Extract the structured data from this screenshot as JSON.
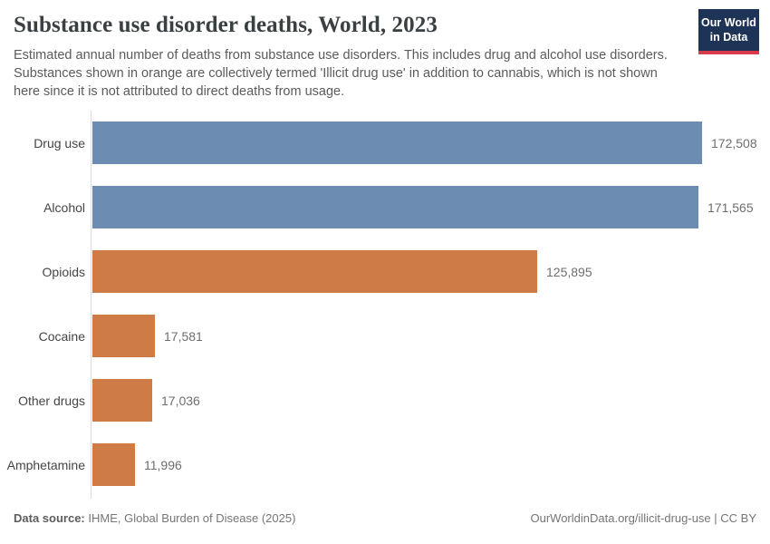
{
  "header": {
    "title": "Substance use disorder deaths, World, 2023",
    "subtitle": "Estimated annual number of deaths from substance use disorders. This includes drug and alcohol use disorders. Substances shown in orange are collectively termed 'Illicit drug use' in addition to cannabis, which is not shown here since it is not attributed to direct deaths from usage.",
    "logo": {
      "line1": "Our World",
      "line2": "in Data"
    }
  },
  "chart_data": {
    "type": "bar",
    "orientation": "horizontal",
    "title": "Substance use disorder deaths, World, 2023",
    "categories": [
      "Drug use",
      "Alcohol",
      "Opioids",
      "Cocaine",
      "Other drugs",
      "Amphetamine"
    ],
    "values": [
      172508,
      171565,
      125895,
      17581,
      17036,
      11996
    ],
    "value_labels": [
      "172,508",
      "171,565",
      "125,895",
      "17,581",
      "17,036",
      "11,996"
    ],
    "bar_colors": [
      "#6c8cb2",
      "#6c8cb2",
      "#ce7b45",
      "#ce7b45",
      "#ce7b45",
      "#ce7b45"
    ],
    "xlim": [
      0,
      172508
    ],
    "xlabel": "",
    "ylabel": "",
    "grid": false,
    "legend": false
  },
  "colors": {
    "blue_series": "#6c8cb2",
    "orange_series": "#ce7b45",
    "logo_bg": "#1d3456",
    "logo_accent": "#d93a4e",
    "axis_line": "#dcdcdc"
  },
  "footer": {
    "datasource_label": "Data source:",
    "datasource_value": " IHME, Global Burden of Disease (2025)",
    "link_text": "OurWorldinData.org/illicit-drug-use | CC BY"
  }
}
